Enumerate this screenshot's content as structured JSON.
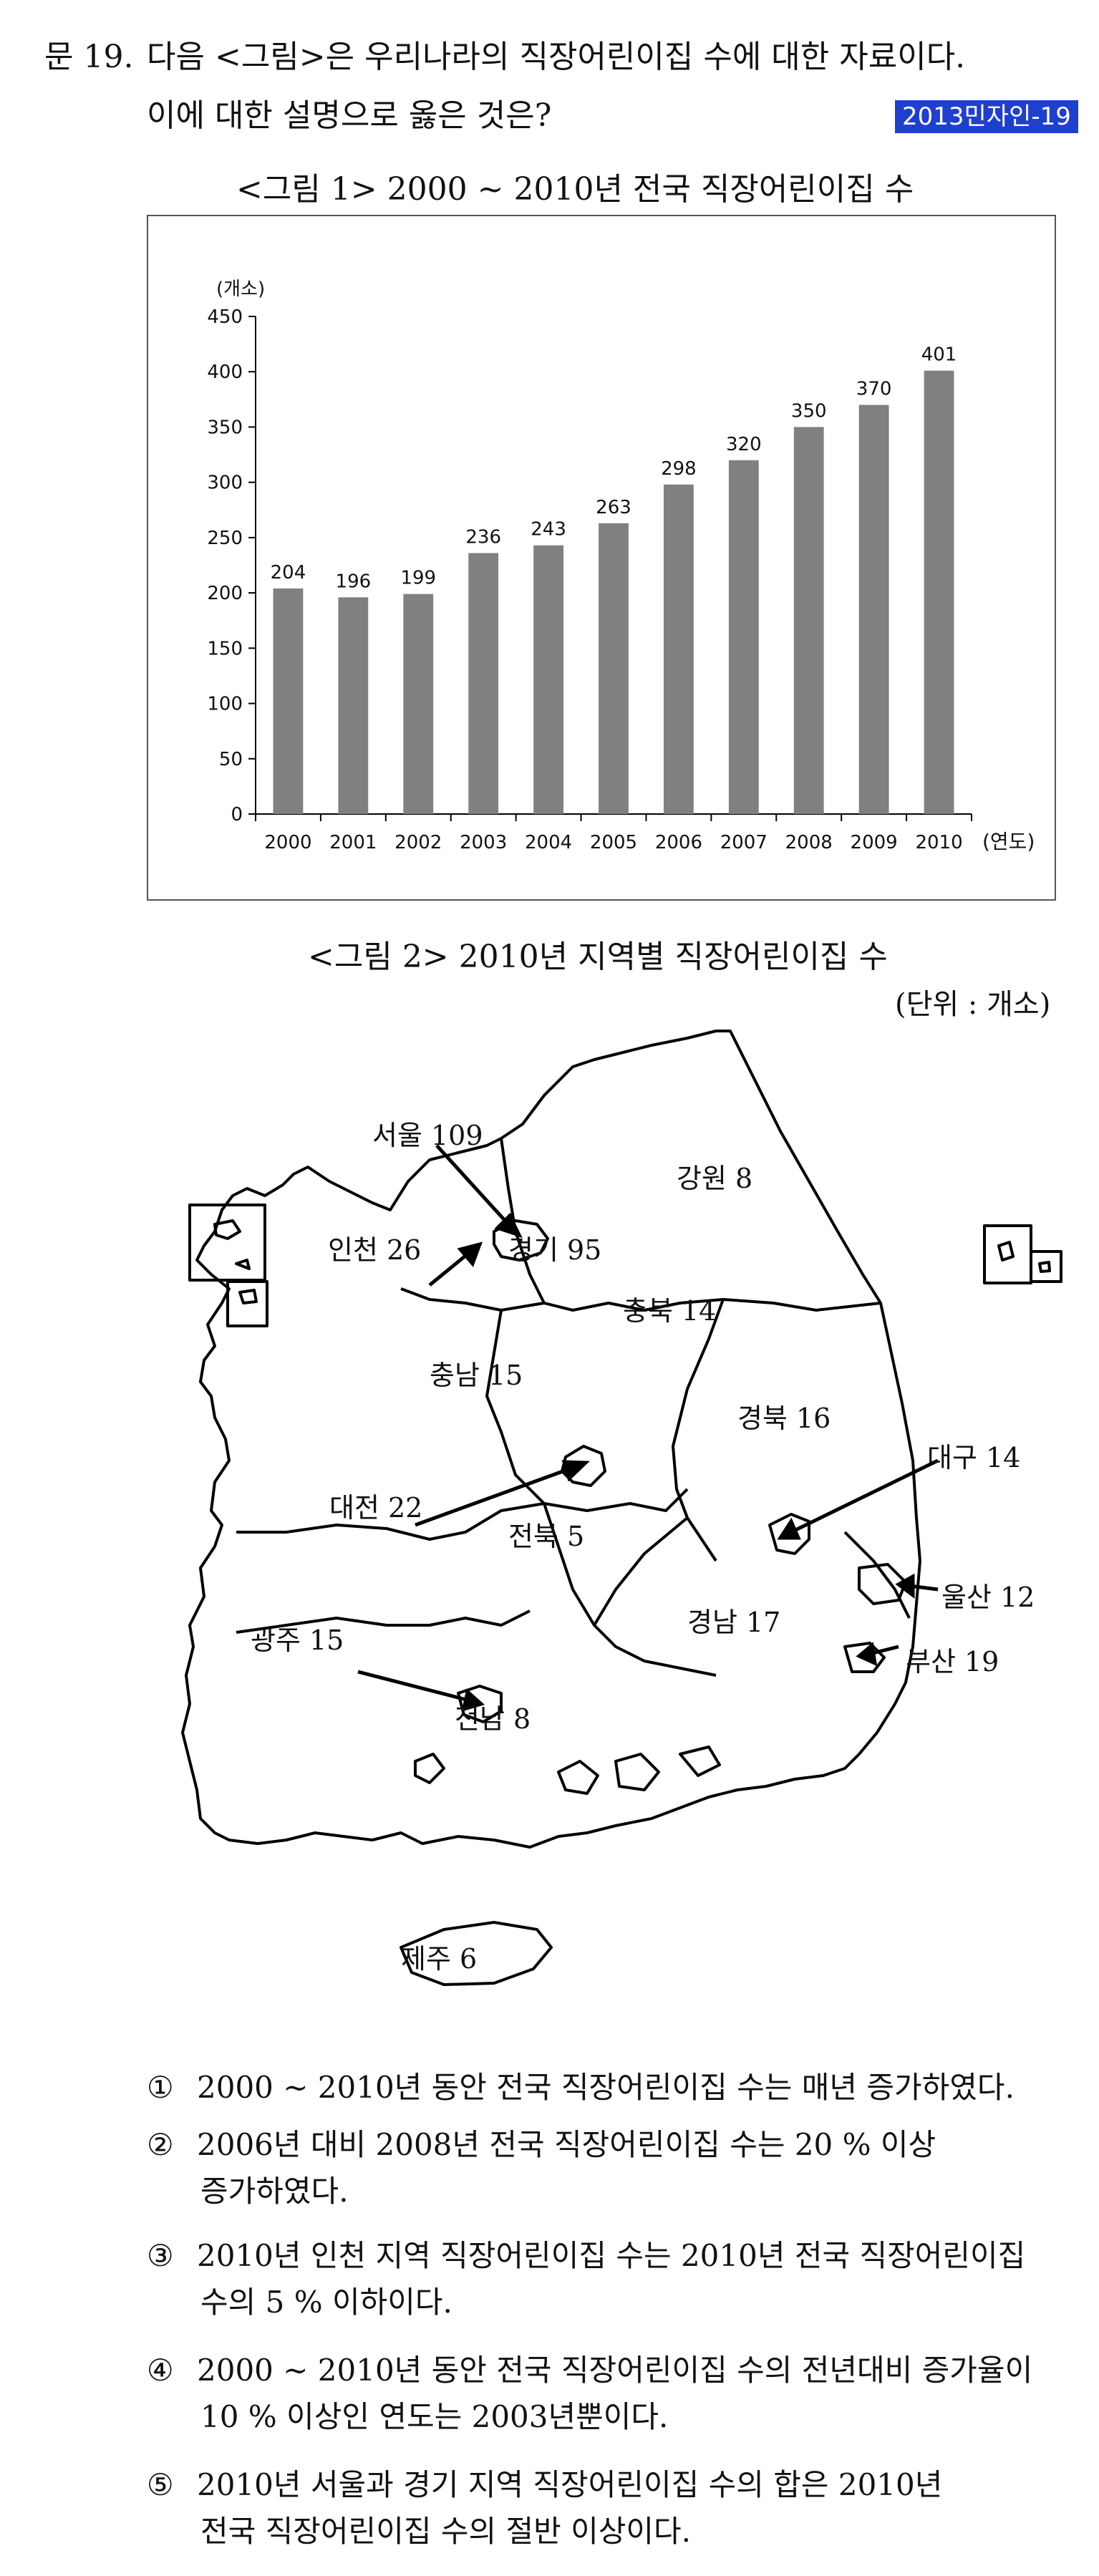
{
  "question": {
    "number": "문 19.",
    "line1": "다음 <그림>은 우리나라의 직장어린이집 수에 대한 자료이다.",
    "line2": "이에 대한 설명으로 옳은 것은?",
    "badge": "2013민자인-19"
  },
  "figure1": {
    "caption": "<그림 1> 2000 ~ 2010년 전국 직장어린이집 수"
  },
  "chart_data": {
    "type": "bar",
    "categories": [
      "2000",
      "2001",
      "2002",
      "2003",
      "2004",
      "2005",
      "2006",
      "2007",
      "2008",
      "2009",
      "2010"
    ],
    "values": [
      204,
      196,
      199,
      236,
      243,
      263,
      298,
      320,
      350,
      370,
      401
    ],
    "ylabel": "(개소)",
    "xlabel": "(연도)",
    "ylim": [
      0,
      450
    ],
    "yticks": [
      0,
      50,
      100,
      150,
      200,
      250,
      300,
      350,
      400,
      450
    ],
    "bar_color": "#808080",
    "grid": false
  },
  "figure2": {
    "caption": "<그림 2> 2010년 지역별 직장어린이집 수",
    "unit": "(단위 : 개소)",
    "regions": {
      "seoul": "서울 109",
      "incheon": "인천 26",
      "gyeonggi": "경기 95",
      "gangwon": "강원 8",
      "chungbuk": "충북 14",
      "chungnam": "충남 15",
      "gyeongbuk": "경북 16",
      "daegu": "대구 14",
      "daejeon": "대전 22",
      "jeonbuk": "전북 5",
      "ulsan": "울산 12",
      "gyeongnam": "경남 17",
      "gwangju": "광주 15",
      "busan": "부산 19",
      "jeonnam": "전남 8",
      "jeju": "제주 6"
    }
  },
  "choices": [
    {
      "num": "①",
      "line1": "2000 ~ 2010년 동안 전국 직장어린이집 수는 매년 증가하였다.",
      "line2": ""
    },
    {
      "num": "②",
      "line1": "2006년 대비 2008년 전국 직장어린이집 수는 20 % 이상",
      "line2": "증가하였다."
    },
    {
      "num": "③",
      "line1": "2010년 인천 지역 직장어린이집 수는 2010년 전국 직장어린이집",
      "line2": "수의 5 % 이하이다."
    },
    {
      "num": "④",
      "line1": "2000 ~ 2010년 동안 전국 직장어린이집 수의 전년대비 증가율이",
      "line2": "10 % 이상인 연도는 2003년뿐이다."
    },
    {
      "num": "⑤",
      "line1": "2010년 서울과 경기 지역 직장어린이집 수의 합은 2010년",
      "line2": "전국 직장어린이집 수의 절반 이상이다."
    }
  ]
}
